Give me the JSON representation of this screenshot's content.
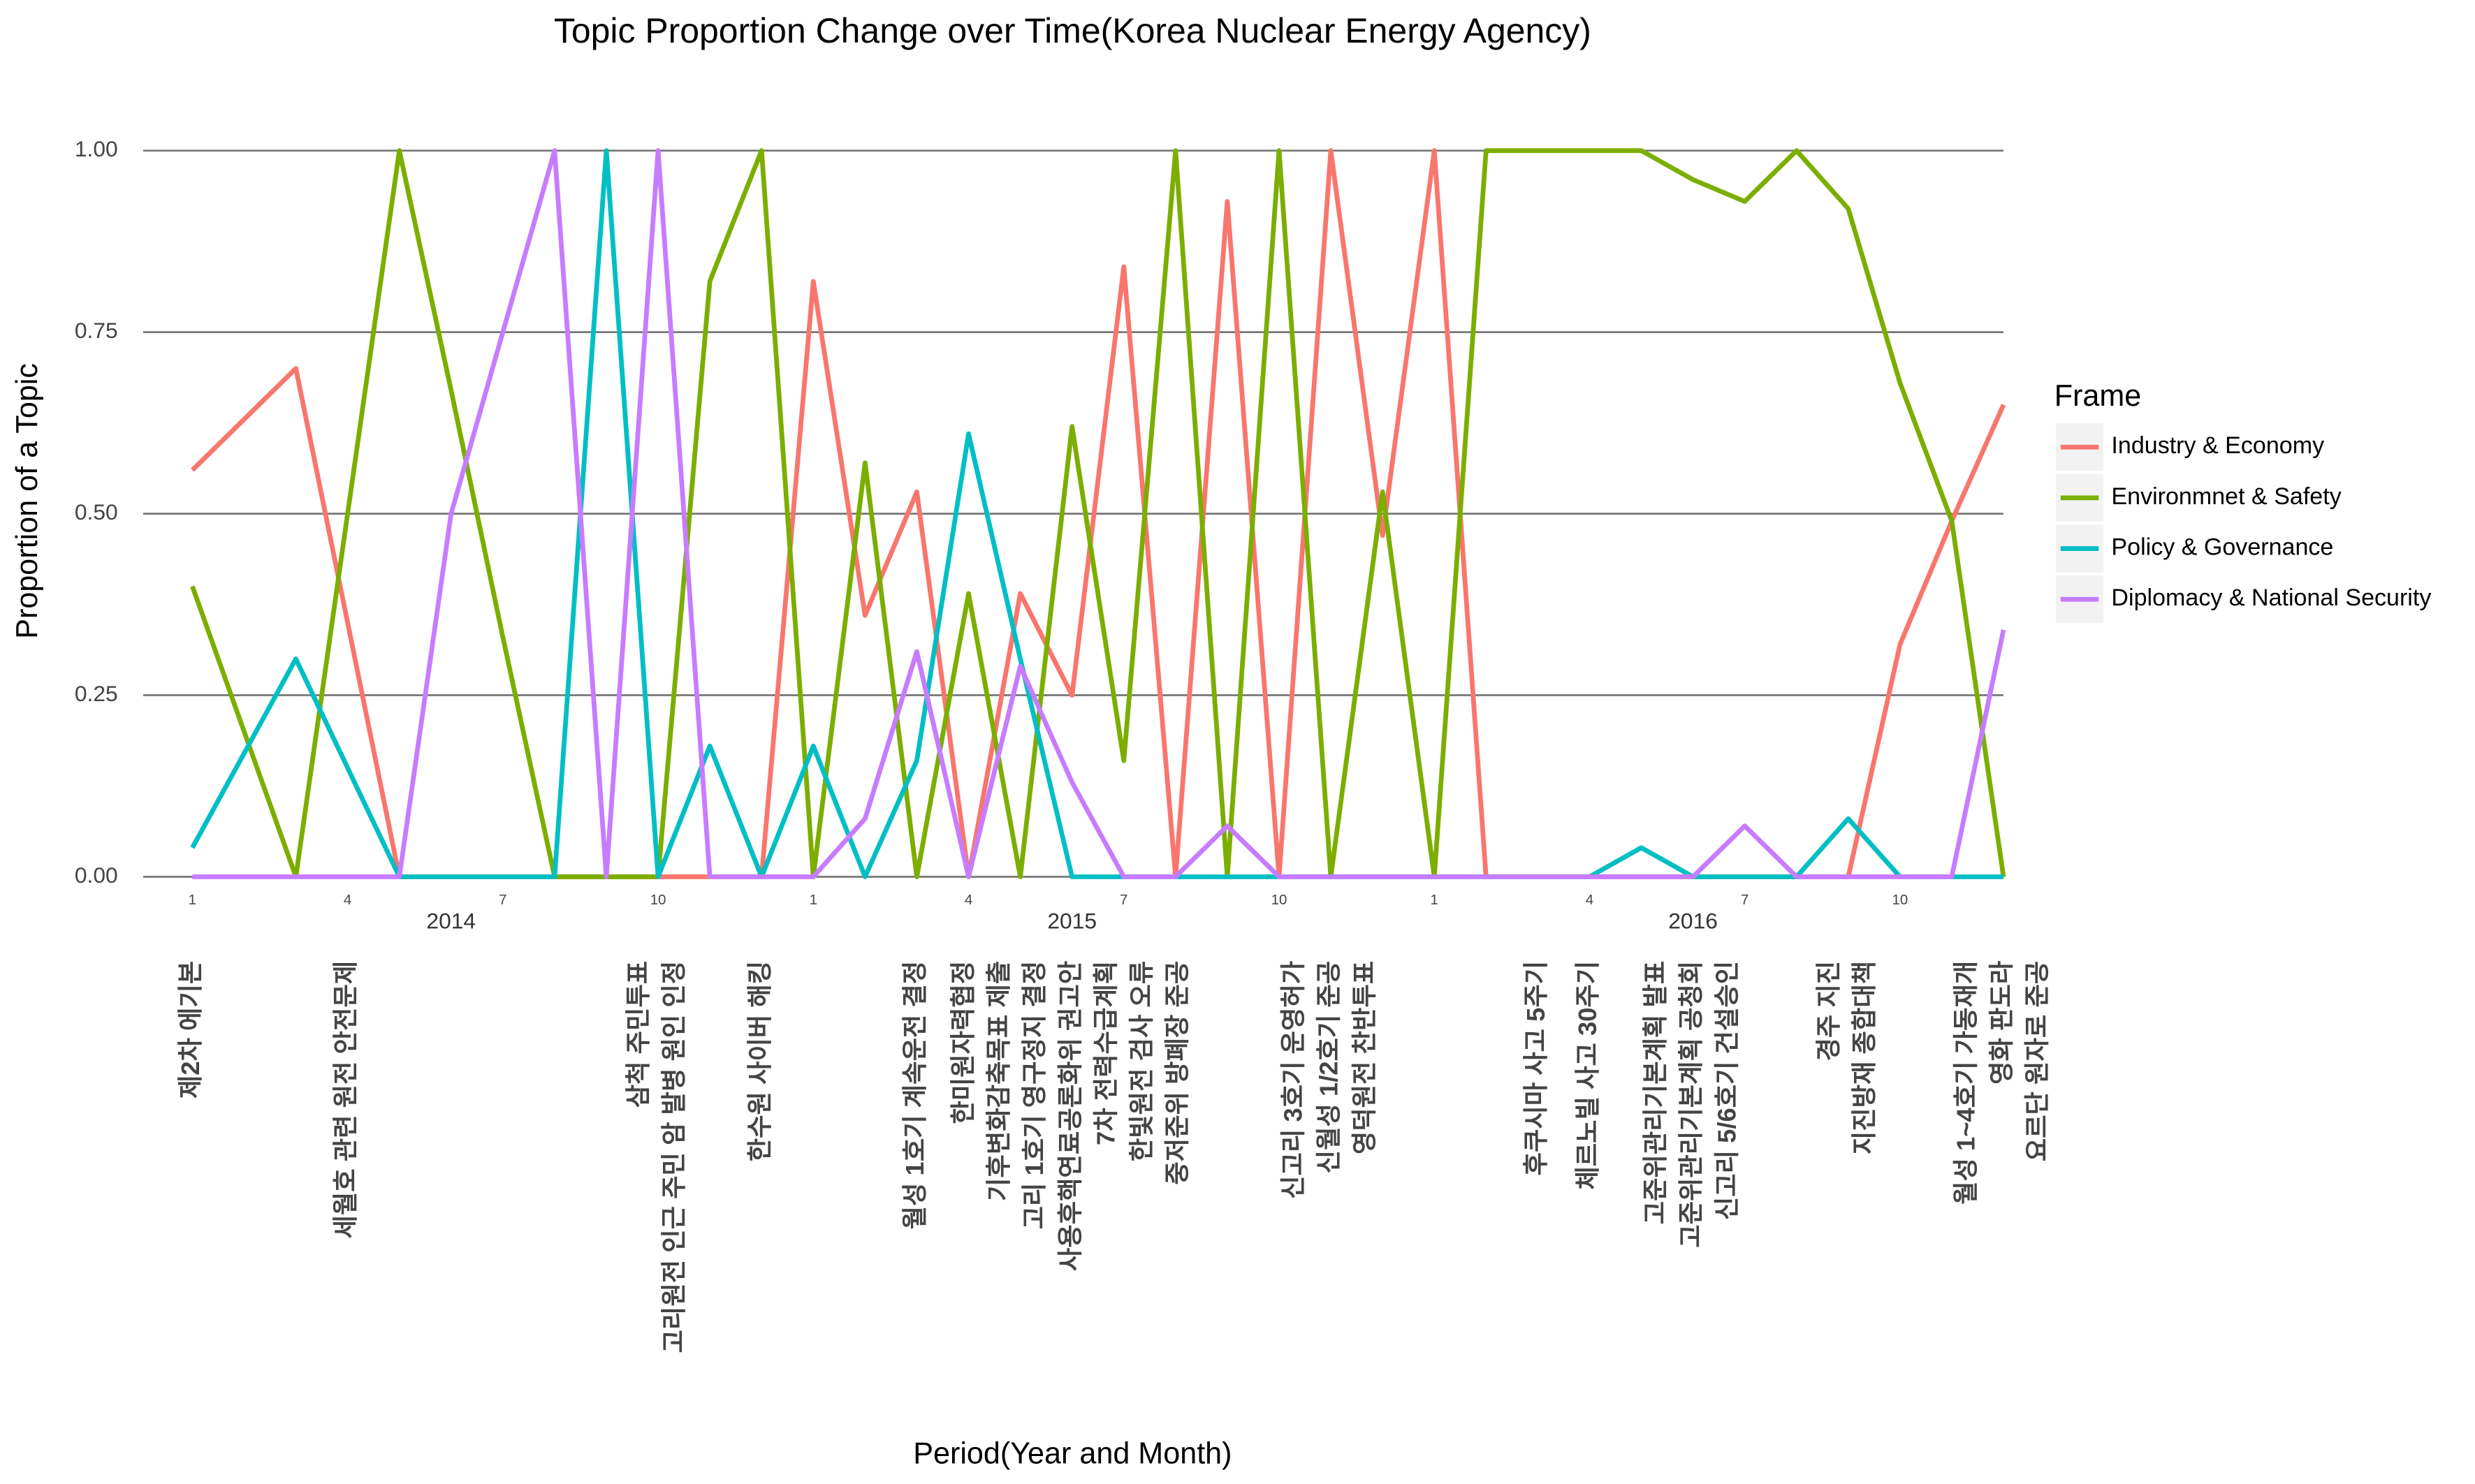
{
  "chart_data": {
    "type": "line",
    "title": "Topic Proportion Change over Time(Korea Nuclear Energy Agency)",
    "x_label": "Period(Year and Month)",
    "y_label": "Proportion of a Topic",
    "x": [
      "2014-01",
      "2014-02",
      "2014-03",
      "2014-04",
      "2014-05",
      "2014-06",
      "2014-07",
      "2014-08",
      "2014-09",
      "2014-10",
      "2014-11",
      "2014-12",
      "2015-01",
      "2015-02",
      "2015-03",
      "2015-04",
      "2015-05",
      "2015-06",
      "2015-07",
      "2015-08",
      "2015-09",
      "2015-10",
      "2015-11",
      "2015-12",
      "2016-01",
      "2016-02",
      "2016-03",
      "2016-04",
      "2016-05",
      "2016-06",
      "2016-07",
      "2016-08",
      "2016-09",
      "2016-10",
      "2016-11",
      "2016-12"
    ],
    "series": [
      {
        "name": "Industry & Economy",
        "color": "#F8766D",
        "values": [
          0.56,
          0.63,
          0.7,
          0.35,
          0,
          0,
          0,
          0,
          0,
          0,
          0,
          0,
          0.82,
          0.36,
          0.53,
          0,
          0.39,
          0.25,
          0.84,
          0,
          0.93,
          0,
          1.0,
          0.47,
          1.0,
          0,
          0,
          0,
          0,
          0,
          0,
          0,
          0,
          0.32,
          0.49,
          0.65
        ]
      },
      {
        "name": "Environmnet & Safety",
        "color": "#7CAE00",
        "values": [
          0.4,
          0.2,
          0,
          0.5,
          1.0,
          0.67,
          0.33,
          0,
          0,
          0,
          0.82,
          1.0,
          0,
          0.57,
          0,
          0.39,
          0,
          0.62,
          0.16,
          1.0,
          0,
          1.0,
          0,
          0.53,
          0,
          1.0,
          1.0,
          1.0,
          1.0,
          0.96,
          0.93,
          1.0,
          0.92,
          0.68,
          0.49,
          0
        ]
      },
      {
        "name": "Policy & Governance",
        "color": "#00BFC4",
        "values": [
          0.04,
          0.17,
          0.3,
          0.15,
          0,
          0,
          0,
          0,
          1.0,
          0,
          0.18,
          0,
          0.18,
          0,
          0.16,
          0.61,
          0.3,
          0,
          0,
          0,
          0,
          0,
          0,
          0,
          0,
          0,
          0,
          0,
          0.04,
          0,
          0,
          0,
          0.08,
          0,
          0,
          0
        ]
      },
      {
        "name": "Diplomacy & National Security",
        "color": "#C77CFF",
        "values": [
          0,
          0,
          0,
          0,
          0,
          0.5,
          0.75,
          1.0,
          0,
          1.0,
          0,
          0,
          0,
          0.08,
          0.31,
          0,
          0.29,
          0.13,
          0,
          0,
          0.07,
          0,
          0,
          0,
          0,
          0,
          0,
          0,
          0,
          0,
          0.07,
          0,
          0,
          0,
          0,
          0.34
        ]
      }
    ],
    "ylim": [
      0,
      1
    ],
    "yticks": [
      {
        "value": 0,
        "label": "0.00"
      },
      {
        "value": 0.25,
        "label": "0.25"
      },
      {
        "value": 0.5,
        "label": "0.50"
      },
      {
        "value": 0.75,
        "label": "0.75"
      },
      {
        "value": 1,
        "label": "1.00"
      }
    ],
    "xticks": [
      {
        "value": "2014-01",
        "label": "1"
      },
      {
        "value": "2014-04",
        "label": "4"
      },
      {
        "value": "2014-07",
        "label": "7"
      },
      {
        "value": "2014-10",
        "label": "10"
      },
      {
        "value": "2015-01",
        "label": "1"
      },
      {
        "value": "2015-04",
        "label": "4"
      },
      {
        "value": "2015-07",
        "label": "7"
      },
      {
        "value": "2015-10",
        "label": "10"
      },
      {
        "value": "2016-01",
        "label": "1"
      },
      {
        "value": "2016-04",
        "label": "4"
      },
      {
        "value": "2016-07",
        "label": "7"
      },
      {
        "value": "2016-10",
        "label": "10"
      }
    ],
    "year_labels": [
      {
        "value": "2014-06",
        "label": "2014"
      },
      {
        "value": "2015-06",
        "label": "2015"
      },
      {
        "value": "2016-06",
        "label": "2016"
      }
    ],
    "grid": true,
    "legend_title": "Frame",
    "legend_position": "right",
    "events": [
      {
        "x": "2014-01",
        "lines": [
          "제2차 에기본"
        ]
      },
      {
        "x": "2014-04",
        "lines": [
          "세월호 관련 원전 안전문제"
        ]
      },
      {
        "x": "2014-10",
        "lines": [
          "삼척 주민투표",
          "고리원전 인근 주민 암 발병 원인 인정"
        ]
      },
      {
        "x": "2014-12",
        "lines": [
          "한수원 사이버 해킹"
        ]
      },
      {
        "x": "2015-03",
        "lines": [
          "월성 1호기 계속운전 결정"
        ]
      },
      {
        "x": "2015-06",
        "lines": [
          "한미원자력협정",
          "기후변화감축목표 제출",
          "고리 1호기 영구정지 결정",
          "사용후핵연료공론화위 권고안",
          "7차 전력수급계획",
          "한빛원전 검사 오류",
          "중저준위 방폐장 준공"
        ]
      },
      {
        "x": "2015-11",
        "lines": [
          "신고리 3호기 운영허가",
          "신월성 1/2호기 준공",
          "영덕원전 찬반투표"
        ]
      },
      {
        "x": "2016-03",
        "lines": [
          "후쿠시마 사고 5주기"
        ]
      },
      {
        "x": "2016-04",
        "lines": [
          "체르노빌 사고 30주기"
        ]
      },
      {
        "x": "2016-06",
        "lines": [
          "고준위관리기본계획 발표",
          "고준위관리기본계획 공청회",
          "신고리 5/6호기 건설승인"
        ]
      },
      {
        "x": "2016-09",
        "lines": [
          "경주 지진",
          "지진방재 종합대책"
        ]
      },
      {
        "x": "2016-12",
        "lines": [
          "월성 1~4호기 가동재개",
          "영화 판도라",
          "요르단 원자로 준공"
        ]
      }
    ]
  }
}
